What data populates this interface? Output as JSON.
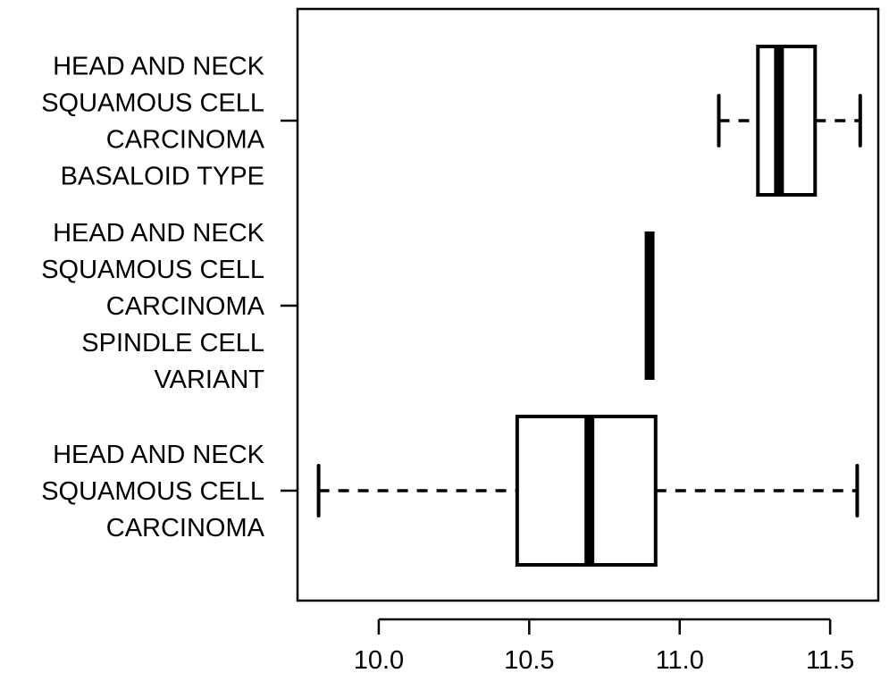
{
  "chart_data": {
    "type": "boxplot",
    "orientation": "horizontal",
    "title": "",
    "xlabel": "",
    "ylabel": "",
    "xlim": [
      9.73,
      11.66
    ],
    "x_ticks": [
      10.0,
      10.5,
      11.0,
      11.5
    ],
    "x_tick_labels": [
      "10.0",
      "10.5",
      "11.0",
      "11.5"
    ],
    "grid": false,
    "legend": "none",
    "colors": {
      "box_fill": "#ffffff",
      "stroke": "#000000"
    },
    "categories": [
      {
        "lines": [
          "HEAD AND NECK",
          "SQUAMOUS CELL",
          "CARCINOMA"
        ],
        "whisker_low": 9.8,
        "q1": 10.46,
        "median": 10.7,
        "q3": 10.92,
        "whisker_high": 11.59
      },
      {
        "lines": [
          "HEAD AND NECK",
          "SQUAMOUS CELL",
          "CARCINOMA",
          "SPINDLE CELL",
          "VARIANT"
        ],
        "whisker_low": 10.9,
        "q1": 10.9,
        "median": 10.9,
        "q3": 10.9,
        "whisker_high": 10.9
      },
      {
        "lines": [
          "HEAD AND NECK",
          "SQUAMOUS CELL",
          "CARCINOMA",
          "BASALOID TYPE"
        ],
        "whisker_low": 11.13,
        "q1": 11.26,
        "median": 11.33,
        "q3": 11.45,
        "whisker_high": 11.6
      }
    ]
  }
}
